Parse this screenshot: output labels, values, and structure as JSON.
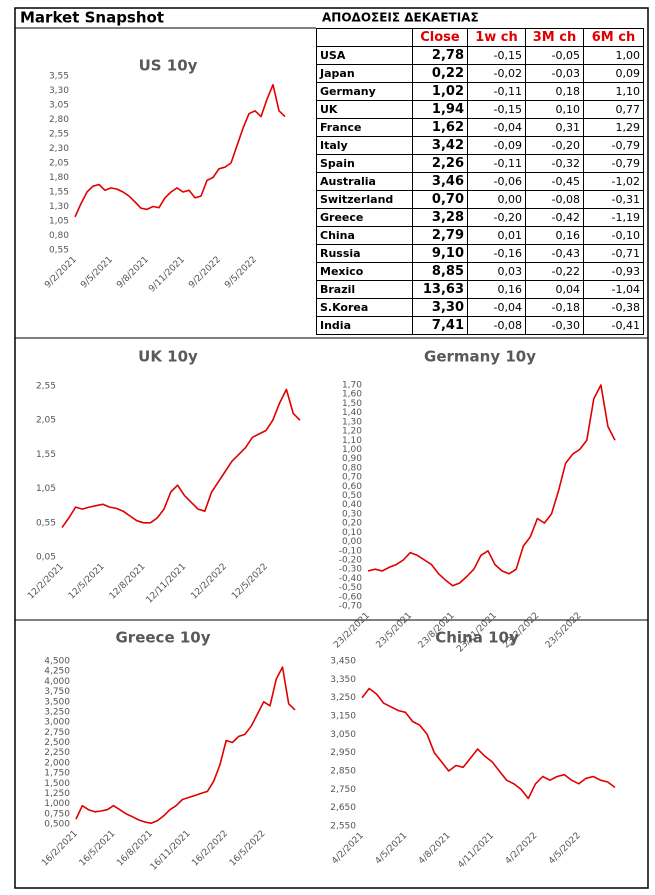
{
  "header": {
    "title": "Market Snapshot"
  },
  "table": {
    "title": "ΑΠΟΔΟΣΕΙΣ ΔΕΚΑΕΤΙΑΣ",
    "columns": [
      "Close",
      "1w ch",
      "3M ch",
      "6M ch"
    ],
    "rows": [
      [
        "USA",
        "2,78",
        "-0,15",
        "-0,05",
        "1,00"
      ],
      [
        "Japan",
        "0,22",
        "-0,02",
        "-0,03",
        "0,09"
      ],
      [
        "Germany",
        "1,02",
        "-0,11",
        "0,18",
        "1,10"
      ],
      [
        "UK",
        "1,94",
        "-0,15",
        "0,10",
        "0,77"
      ],
      [
        "France",
        "1,62",
        "-0,04",
        "0,31",
        "1,29"
      ],
      [
        "Italy",
        "3,42",
        "-0,09",
        "-0,20",
        "-0,79"
      ],
      [
        "Spain",
        "2,26",
        "-0,11",
        "-0,32",
        "-0,79"
      ],
      [
        "Australia",
        "3,46",
        "-0,06",
        "-0,45",
        "-1,02"
      ],
      [
        "Switzerland",
        "0,70",
        "0,00",
        "-0,08",
        "-0,31"
      ],
      [
        "Greece",
        "3,28",
        "-0,20",
        "-0,42",
        "-1,19"
      ],
      [
        "China",
        "2,79",
        "0,01",
        "0,16",
        "-0,10"
      ],
      [
        "Russia",
        "9,10",
        "-0,16",
        "-0,43",
        "-0,71"
      ],
      [
        "Mexico",
        "8,85",
        "0,03",
        "-0,22",
        "-0,93"
      ],
      [
        "Brazil",
        "13,63",
        "0,16",
        "0,04",
        "-1,04"
      ],
      [
        "S.Korea",
        "3,30",
        "-0,04",
        "-0,18",
        "-0,38"
      ],
      [
        "India",
        "7,41",
        "-0,08",
        "-0,30",
        "-0,41"
      ]
    ]
  },
  "chart_data": [
    {
      "type": "line",
      "title": "US 10y",
      "categories": [
        "9/2/2021",
        null,
        null,
        null,
        null,
        null,
        "9/5/2021",
        null,
        null,
        null,
        null,
        null,
        "9/8/2021",
        null,
        null,
        null,
        null,
        null,
        "9/11/2021",
        null,
        null,
        null,
        null,
        null,
        "9/2/2022",
        null,
        null,
        null,
        null,
        null,
        "9/5/2022",
        null,
        null,
        null,
        null,
        null
      ],
      "series": [
        {
          "color": "#e00000",
          "values": [
            1.12,
            1.35,
            1.55,
            1.65,
            1.68,
            1.58,
            1.62,
            1.6,
            1.55,
            1.48,
            1.38,
            1.27,
            1.25,
            1.3,
            1.28,
            1.45,
            1.55,
            1.62,
            1.55,
            1.58,
            1.45,
            1.48,
            1.75,
            1.8,
            1.95,
            1.98,
            2.05,
            2.35,
            2.65,
            2.9,
            2.95,
            2.85,
            3.15,
            3.4,
            2.95,
            2.85
          ]
        }
      ],
      "ylim": [
        0.55,
        3.55
      ],
      "yticks": [
        {
          "value": 0.55,
          "label": "0,55"
        },
        {
          "value": 0.8,
          "label": "0,80"
        },
        {
          "value": 1.05,
          "label": "1,05"
        },
        {
          "value": 1.3,
          "label": "1,30"
        },
        {
          "value": 1.55,
          "label": "1,55"
        },
        {
          "value": 1.8,
          "label": "1,80"
        },
        {
          "value": 2.05,
          "label": "2,05"
        },
        {
          "value": 2.3,
          "label": "2,30"
        },
        {
          "value": 2.55,
          "label": "2,55"
        },
        {
          "value": 2.8,
          "label": "2,80"
        },
        {
          "value": 3.05,
          "label": "3,05"
        },
        {
          "value": 3.3,
          "label": "3,30"
        },
        {
          "value": 3.55,
          "label": "3,55"
        }
      ]
    },
    {
      "type": "line",
      "title": "UK 10y",
      "categories": [
        "12/2/2021",
        null,
        null,
        null,
        null,
        null,
        "12/5/2021",
        null,
        null,
        null,
        null,
        null,
        "12/8/2021",
        null,
        null,
        null,
        null,
        null,
        "12/11/2021",
        null,
        null,
        null,
        null,
        null,
        "12/2/2022",
        null,
        null,
        null,
        null,
        null,
        "12/5/2022",
        null,
        null,
        null,
        null,
        null
      ],
      "series": [
        {
          "color": "#e00000",
          "values": [
            0.48,
            0.62,
            0.78,
            0.75,
            0.78,
            0.8,
            0.82,
            0.78,
            0.76,
            0.72,
            0.65,
            0.58,
            0.55,
            0.55,
            0.62,
            0.75,
            1.0,
            1.1,
            0.95,
            0.85,
            0.75,
            0.72,
            1.0,
            1.15,
            1.3,
            1.45,
            1.55,
            1.65,
            1.8,
            1.85,
            1.9,
            2.05,
            2.3,
            2.5,
            2.15,
            2.05
          ]
        }
      ],
      "ylim": [
        0.05,
        2.55
      ],
      "yticks": [
        {
          "value": 0.05,
          "label": "0,05"
        },
        {
          "value": 0.55,
          "label": "0,55"
        },
        {
          "value": 1.05,
          "label": "1,05"
        },
        {
          "value": 1.55,
          "label": "1,55"
        },
        {
          "value": 2.05,
          "label": "2,05"
        },
        {
          "value": 2.55,
          "label": "2,55"
        }
      ]
    },
    {
      "type": "line",
      "title": "Germany 10y",
      "categories": [
        "23/2/2021",
        null,
        null,
        null,
        null,
        null,
        "23/5/2021",
        null,
        null,
        null,
        null,
        null,
        "23/8/2021",
        null,
        null,
        null,
        null,
        null,
        "23/11/2021",
        null,
        null,
        null,
        null,
        null,
        "23/2/2022",
        null,
        null,
        null,
        null,
        null,
        "23/5/2022",
        null,
        null,
        null,
        null,
        null
      ],
      "series": [
        {
          "color": "#e00000",
          "values": [
            -0.32,
            -0.3,
            -0.32,
            -0.28,
            -0.25,
            -0.2,
            -0.12,
            -0.15,
            -0.2,
            -0.25,
            -0.35,
            -0.42,
            -0.48,
            -0.45,
            -0.38,
            -0.3,
            -0.15,
            -0.1,
            -0.25,
            -0.32,
            -0.35,
            -0.3,
            -0.05,
            0.05,
            0.25,
            0.2,
            0.3,
            0.55,
            0.85,
            0.95,
            1.0,
            1.1,
            1.55,
            1.7,
            1.25,
            1.1
          ]
        }
      ],
      "ylim": [
        -0.7,
        1.7
      ],
      "yticks": [
        {
          "value": -0.7,
          "label": "-0,70"
        },
        {
          "value": -0.6,
          "label": "-0,60"
        },
        {
          "value": -0.5,
          "label": "-0,50"
        },
        {
          "value": -0.4,
          "label": "-0,40"
        },
        {
          "value": -0.3,
          "label": "-0,30"
        },
        {
          "value": -0.2,
          "label": "-0,20"
        },
        {
          "value": -0.1,
          "label": "-0,10"
        },
        {
          "value": 0,
          "label": "0,00"
        },
        {
          "value": 0.1,
          "label": "0,10"
        },
        {
          "value": 0.2,
          "label": "0,20"
        },
        {
          "value": 0.3,
          "label": "0,30"
        },
        {
          "value": 0.4,
          "label": "0,40"
        },
        {
          "value": 0.5,
          "label": "0,50"
        },
        {
          "value": 0.6,
          "label": "0,60"
        },
        {
          "value": 0.7,
          "label": "0,70"
        },
        {
          "value": 0.8,
          "label": "0,80"
        },
        {
          "value": 0.9,
          "label": "0,90"
        },
        {
          "value": 1.0,
          "label": "1,00"
        },
        {
          "value": 1.1,
          "label": "1,10"
        },
        {
          "value": 1.2,
          "label": "1,20"
        },
        {
          "value": 1.3,
          "label": "1,30"
        },
        {
          "value": 1.4,
          "label": "1,40"
        },
        {
          "value": 1.5,
          "label": "1,50"
        },
        {
          "value": 1.6,
          "label": "1,60"
        },
        {
          "value": 1.7,
          "label": "1,70"
        }
      ]
    },
    {
      "type": "line",
      "title": "Greece 10y",
      "categories": [
        "16/2/2021",
        null,
        null,
        null,
        null,
        null,
        "16/5/2021",
        null,
        null,
        null,
        null,
        null,
        "16/8/2021",
        null,
        null,
        null,
        null,
        null,
        "16/11/2021",
        null,
        null,
        null,
        null,
        null,
        "16/2/2022",
        null,
        null,
        null,
        null,
        null,
        "16/5/2022",
        null,
        null,
        null,
        null,
        null
      ],
      "series": [
        {
          "color": "#e00000",
          "values": [
            0.62,
            0.95,
            0.85,
            0.8,
            0.82,
            0.85,
            0.95,
            0.85,
            0.75,
            0.68,
            0.6,
            0.55,
            0.52,
            0.58,
            0.7,
            0.85,
            0.95,
            1.1,
            1.15,
            1.2,
            1.25,
            1.3,
            1.55,
            1.95,
            2.55,
            2.5,
            2.65,
            2.7,
            2.9,
            3.2,
            3.5,
            3.4,
            4.05,
            4.35,
            3.45,
            3.3
          ]
        }
      ],
      "ylim": [
        0.5,
        4.5
      ],
      "yticks": [
        {
          "value": 0.5,
          "label": "0,500"
        },
        {
          "value": 0.75,
          "label": "0,750"
        },
        {
          "value": 1.0,
          "label": "1,000"
        },
        {
          "value": 1.25,
          "label": "1,250"
        },
        {
          "value": 1.5,
          "label": "1,500"
        },
        {
          "value": 1.75,
          "label": "1,750"
        },
        {
          "value": 2.0,
          "label": "2,000"
        },
        {
          "value": 2.25,
          "label": "2,250"
        },
        {
          "value": 2.5,
          "label": "2,500"
        },
        {
          "value": 2.75,
          "label": "2,750"
        },
        {
          "value": 3.0,
          "label": "3,000"
        },
        {
          "value": 3.25,
          "label": "3,250"
        },
        {
          "value": 3.5,
          "label": "3,500"
        },
        {
          "value": 3.75,
          "label": "3,750"
        },
        {
          "value": 4.0,
          "label": "4,000"
        },
        {
          "value": 4.25,
          "label": "4,250"
        },
        {
          "value": 4.5,
          "label": "4,500"
        }
      ]
    },
    {
      "type": "line",
      "title": "China 10y",
      "categories": [
        "4/2/2021",
        null,
        null,
        null,
        null,
        null,
        "4/5/2021",
        null,
        null,
        null,
        null,
        null,
        "4/8/2021",
        null,
        null,
        null,
        null,
        null,
        "4/11/2021",
        null,
        null,
        null,
        null,
        null,
        "4/2/2022",
        null,
        null,
        null,
        null,
        null,
        "4/5/2022",
        null,
        null,
        null,
        null,
        null
      ],
      "series": [
        {
          "color": "#e00000",
          "values": [
            3.25,
            3.3,
            3.27,
            3.22,
            3.2,
            3.18,
            3.17,
            3.12,
            3.1,
            3.05,
            2.95,
            2.9,
            2.85,
            2.88,
            2.87,
            2.92,
            2.97,
            2.93,
            2.9,
            2.85,
            2.8,
            2.78,
            2.75,
            2.7,
            2.78,
            2.82,
            2.8,
            2.82,
            2.83,
            2.8,
            2.78,
            2.81,
            2.82,
            2.8,
            2.79,
            2.76
          ]
        }
      ],
      "ylim": [
        2.55,
        3.45
      ],
      "yticks": [
        {
          "value": 2.55,
          "label": "2,550"
        },
        {
          "value": 2.65,
          "label": "2,650"
        },
        {
          "value": 2.75,
          "label": "2,750"
        },
        {
          "value": 2.85,
          "label": "2,850"
        },
        {
          "value": 2.95,
          "label": "2,950"
        },
        {
          "value": 3.05,
          "label": "3,050"
        },
        {
          "value": 3.15,
          "label": "3,150"
        },
        {
          "value": 3.25,
          "label": "3,250"
        },
        {
          "value": 3.35,
          "label": "3,350"
        },
        {
          "value": 3.45,
          "label": "3,450"
        }
      ]
    }
  ]
}
